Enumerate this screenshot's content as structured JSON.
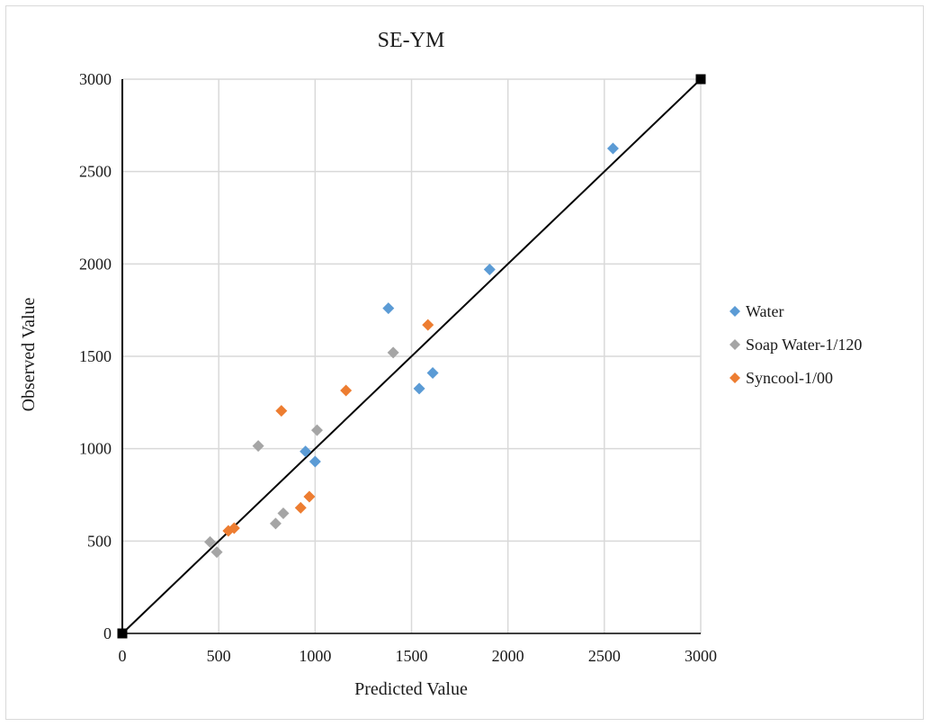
{
  "chart_data": {
    "type": "scatter",
    "title": "SE-YM",
    "xlabel": "Predicted Value",
    "ylabel": "Observed Value",
    "xlim": [
      0,
      3000
    ],
    "ylim": [
      0,
      3000
    ],
    "x_ticks": [
      "0",
      "500",
      "1000",
      "1500",
      "2000",
      "2500",
      "3000"
    ],
    "y_ticks": [
      "0",
      "500",
      "1000",
      "1500",
      "2000",
      "2500",
      "3000"
    ],
    "grid": true,
    "legend_position": "right",
    "series": [
      {
        "name": "Water",
        "color": "#5b9bd5",
        "marker": "diamond",
        "points": [
          {
            "x": 950,
            "y": 985
          },
          {
            "x": 1000,
            "y": 930
          },
          {
            "x": 1380,
            "y": 1760
          },
          {
            "x": 1540,
            "y": 1325
          },
          {
            "x": 1610,
            "y": 1410
          },
          {
            "x": 1905,
            "y": 1970
          },
          {
            "x": 2545,
            "y": 2625
          }
        ]
      },
      {
        "name": "Soap Water-1/120",
        "color": "#a5a5a5",
        "marker": "diamond",
        "points": [
          {
            "x": 455,
            "y": 495
          },
          {
            "x": 490,
            "y": 440
          },
          {
            "x": 705,
            "y": 1015
          },
          {
            "x": 795,
            "y": 595
          },
          {
            "x": 835,
            "y": 650
          },
          {
            "x": 1010,
            "y": 1100
          },
          {
            "x": 1405,
            "y": 1520
          }
        ]
      },
      {
        "name": "Syncool-1/00",
        "color": "#ed7d31",
        "marker": "diamond",
        "points": [
          {
            "x": 550,
            "y": 555
          },
          {
            "x": 580,
            "y": 570
          },
          {
            "x": 825,
            "y": 1205
          },
          {
            "x": 925,
            "y": 680
          },
          {
            "x": 970,
            "y": 740
          },
          {
            "x": 1160,
            "y": 1315
          },
          {
            "x": 1585,
            "y": 1670
          }
        ]
      }
    ],
    "reference_line": {
      "type": "line",
      "color": "#000000",
      "marker": "square",
      "points": [
        {
          "x": 0,
          "y": 0
        },
        {
          "x": 3000,
          "y": 3000
        }
      ]
    }
  }
}
